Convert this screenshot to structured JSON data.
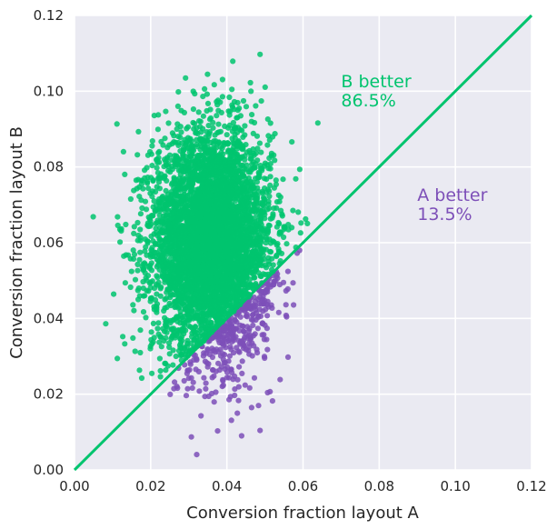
{
  "chart_data": {
    "type": "scatter",
    "title": "",
    "xlabel": "Conversion fraction layout A",
    "ylabel": "Conversion fraction layout B",
    "xlim": [
      0.0,
      0.12
    ],
    "ylim": [
      0.0,
      0.12
    ],
    "xticks": [
      "0.00",
      "0.02",
      "0.04",
      "0.06",
      "0.08",
      "0.10",
      "0.12"
    ],
    "yticks": [
      "0.00",
      "0.02",
      "0.04",
      "0.06",
      "0.08",
      "0.10",
      "0.12"
    ],
    "grid": true,
    "background_color": "#eaeaf2",
    "series": [
      {
        "color": "#00c46e",
        "distribution": {
          "x_mean": 0.036,
          "x_std": 0.0077,
          "y_mean": 0.06,
          "y_std": 0.0145
        },
        "region": "y > x"
      },
      {
        "color": "#7d4fb8",
        "distribution": {
          "x_mean": 0.036,
          "x_std": 0.0077,
          "y_mean": 0.06,
          "y_std": 0.0145
        },
        "region": "y <= x"
      }
    ],
    "reference_line": {
      "from": [
        0.0,
        0.0
      ],
      "to": [
        0.12,
        0.12
      ],
      "color": "#00c46e"
    },
    "annotations": [
      {
        "line1": "B better",
        "line2": "86.5%",
        "x": 0.07,
        "y": 0.101,
        "color": "#00c46e"
      },
      {
        "line1": "A better",
        "line2": "13.5%",
        "x": 0.09,
        "y": 0.071,
        "color": "#7d4fb8"
      }
    ]
  }
}
